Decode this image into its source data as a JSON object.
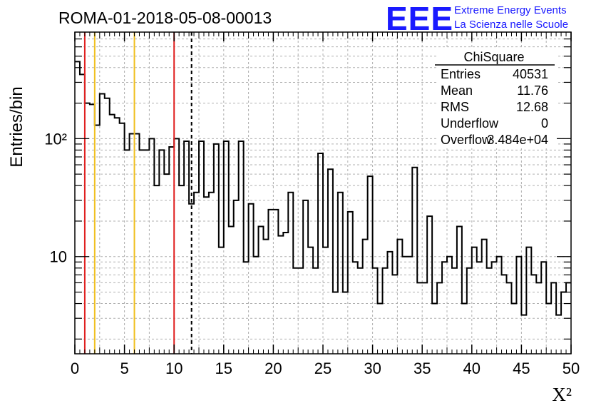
{
  "chart_data": {
    "type": "bar",
    "title": "ROMA-01-2018-05-08-00013",
    "xlabel": "X²",
    "ylabel": "Entries/bin",
    "xlim": [
      0,
      50
    ],
    "ylim": [
      1.5,
      800
    ],
    "yscale": "log",
    "grid": true,
    "x_ticks": [
      "0",
      "5",
      "10",
      "15",
      "20",
      "25",
      "30",
      "35",
      "40",
      "45",
      "50"
    ],
    "y_ticks": [
      "10",
      "10²"
    ],
    "bin_width": 0.5,
    "values": [
      450,
      350,
      200,
      195,
      130,
      240,
      220,
      160,
      150,
      135,
      80,
      110,
      110,
      80,
      80,
      100,
      40,
      80,
      50,
      85,
      100,
      40,
      95,
      28,
      35,
      95,
      32,
      35,
      90,
      12,
      95,
      18,
      30,
      95,
      9,
      28,
      10,
      18,
      14,
      25,
      25,
      15,
      16,
      35,
      8,
      8,
      30,
      12,
      8,
      75,
      12,
      55,
      5,
      35,
      5,
      24,
      9,
      8,
      14,
      48,
      8,
      4,
      8,
      11,
      7,
      14,
      10,
      10,
      57,
      6,
      6,
      22,
      4,
      6,
      9,
      10,
      8,
      18,
      4,
      8,
      12,
      9,
      14,
      8,
      9,
      10,
      7,
      6,
      4,
      10,
      3.2,
      12,
      7,
      6,
      9,
      4,
      6,
      3.2,
      5,
      6
    ]
  },
  "brand": {
    "logo": "EEE",
    "line1": "Extreme Energy Events",
    "line2": "La Scienza nelle Scuole",
    "color": "#1a1aff"
  },
  "stats": {
    "title": "ChiSquare",
    "rows": [
      {
        "label": "Entries",
        "value": "40531"
      },
      {
        "label": "Mean",
        "value": "11.76"
      },
      {
        "label": "RMS",
        "value": "12.68"
      },
      {
        "label": "Underflow",
        "value": "0"
      },
      {
        "label": "Overflow",
        "value": "3.484e+04"
      }
    ]
  },
  "markers": [
    {
      "x": 1,
      "color": "#e02020",
      "style": "solid"
    },
    {
      "x": 2,
      "color": "#f0c020",
      "style": "solid"
    },
    {
      "x": 6,
      "color": "#f0c020",
      "style": "solid"
    },
    {
      "x": 10,
      "color": "#e02020",
      "style": "solid"
    },
    {
      "x": 11.76,
      "color": "#000000",
      "style": "dashed"
    }
  ]
}
